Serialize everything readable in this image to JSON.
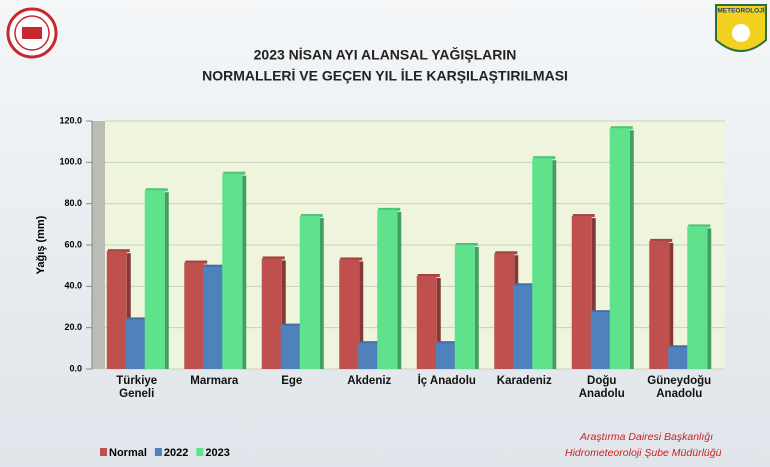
{
  "chart_data": {
    "type": "bar",
    "title": "2023 NİSAN AYI ALANSAL YAĞIŞLARIN",
    "subtitle": "NORMALLERİ VE GEÇEN YIL İLE KARŞILAŞTIRILMASI",
    "y_label": "Yağış (mm)",
    "categories": [
      "Türkiye\nGeneli",
      "Marmara",
      "Ege",
      "Akdeniz",
      "İç Anadolu",
      "Karadeniz",
      "Doğu\nAnadolu",
      "Güneydoğu\nAnadolu"
    ],
    "series": [
      {
        "name": "Normal",
        "color": "#c0504d",
        "values": [
          57,
          51.5,
          53.5,
          53,
          45,
          56,
          74,
          62
        ]
      },
      {
        "name": "2022",
        "color": "#4f81bd",
        "values": [
          24,
          49.5,
          21,
          12.5,
          12.5,
          40.5,
          27.5,
          10.5
        ]
      },
      {
        "name": "2023",
        "color": "#5ee38c",
        "values": [
          86.5,
          94.5,
          74,
          77,
          60,
          102,
          116.5,
          69
        ]
      }
    ],
    "ylim": [
      0,
      120
    ],
    "yticks": [
      {
        "value": 0,
        "label": "0.0"
      },
      {
        "value": 20,
        "label": "20.0"
      },
      {
        "value": 40,
        "label": "40.0"
      },
      {
        "value": 60,
        "label": "60.0"
      },
      {
        "value": 80,
        "label": "80.0"
      },
      {
        "value": 100,
        "label": "100.0"
      },
      {
        "value": 120,
        "label": "120.0"
      }
    ],
    "grid": true,
    "legend": "bottom-left",
    "footer": [
      "Araştırma Dairesi Başkanlığı",
      "Hidrometeoroloji Şube Müdürlüğü"
    ],
    "logo_text": "METEOROLOJİ"
  }
}
